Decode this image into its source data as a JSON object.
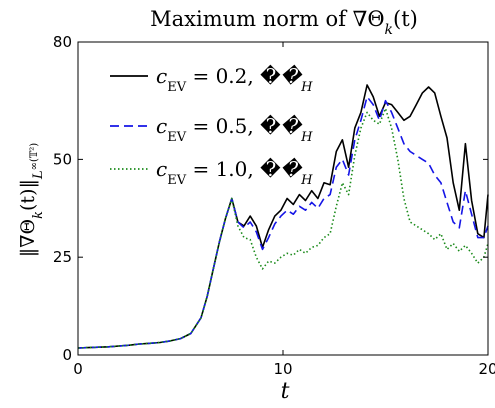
{
  "chart_data": {
    "type": "line",
    "title": "Maximum norm of ∇Θ_k(t)",
    "xlabel": "t",
    "ylabel": "‖∇Θ_k(t)‖_{L^∞(𝕋²)}",
    "xlim": [
      0,
      20
    ],
    "ylim": [
      0,
      80
    ],
    "xticks": [
      0,
      10,
      20
    ],
    "yticks": [
      0,
      25,
      50,
      80
    ],
    "grid": false,
    "legend_position": "top-left",
    "series": [
      {
        "name": "c_EV = 0.2, 𝒯_H",
        "color": "#000000",
        "style": "solid",
        "x": [
          0,
          0.5,
          1,
          1.5,
          2,
          2.5,
          3,
          3.5,
          4,
          4.5,
          5,
          5.5,
          6,
          6.3,
          6.6,
          6.9,
          7.2,
          7.5,
          7.8,
          8.1,
          8.4,
          8.7,
          9,
          9.3,
          9.6,
          9.9,
          10.2,
          10.5,
          10.8,
          11.1,
          11.4,
          11.7,
          12,
          12.3,
          12.6,
          12.9,
          13.2,
          13.5,
          13.8,
          14.1,
          14.4,
          14.7,
          15,
          15.3,
          15.6,
          15.9,
          16.2,
          16.5,
          16.8,
          17.1,
          17.4,
          17.7,
          18,
          18.3,
          18.6,
          18.9,
          19.2,
          19.5,
          19.8,
          20
        ],
        "values": [
          1.8,
          1.9,
          2.0,
          2.1,
          2.3,
          2.5,
          2.8,
          3.0,
          3.2,
          3.6,
          4.2,
          5.5,
          9.5,
          15,
          22,
          29,
          35,
          40,
          34,
          33,
          35.5,
          33,
          27.5,
          32,
          35.5,
          37,
          40,
          38.5,
          41,
          39.5,
          42,
          40,
          44,
          43.5,
          52,
          55,
          48,
          58,
          62,
          69,
          66,
          61,
          64.5,
          64,
          62,
          60,
          61,
          64,
          67,
          68.5,
          67,
          61,
          55.5,
          44,
          37,
          54,
          39.5,
          31,
          30,
          41
        ]
      },
      {
        "name": "c_EV = 0.5, 𝒯_H",
        "color": "#1515e6",
        "style": "dashed",
        "x": [
          0,
          0.5,
          1,
          1.5,
          2,
          2.5,
          3,
          3.5,
          4,
          4.5,
          5,
          5.5,
          6,
          6.3,
          6.6,
          6.9,
          7.2,
          7.5,
          7.8,
          8.1,
          8.4,
          8.7,
          9,
          9.3,
          9.6,
          9.9,
          10.2,
          10.5,
          10.8,
          11.1,
          11.4,
          11.7,
          12,
          12.3,
          12.6,
          12.9,
          13.2,
          13.5,
          13.8,
          14.1,
          14.4,
          14.7,
          15,
          15.3,
          15.6,
          15.9,
          16.2,
          16.5,
          16.8,
          17.1,
          17.4,
          17.7,
          18,
          18.3,
          18.6,
          18.9,
          19.2,
          19.5,
          19.8,
          20
        ],
        "values": [
          1.8,
          1.9,
          2.0,
          2.1,
          2.3,
          2.5,
          2.8,
          3.0,
          3.2,
          3.6,
          4.2,
          5.5,
          9.5,
          15,
          22,
          29,
          35,
          40,
          34,
          32.5,
          34,
          31.5,
          27,
          30,
          33.5,
          35.5,
          37,
          36,
          38,
          37,
          39,
          37.5,
          40,
          41,
          48,
          50,
          46,
          55,
          60,
          66,
          64,
          60,
          65,
          62,
          58,
          54,
          52,
          51,
          50,
          49,
          46,
          44,
          39,
          34,
          32.5,
          42,
          36,
          30,
          30,
          33
        ]
      },
      {
        "name": "c_EV = 1.0, 𝒯_H",
        "color": "#1a8a1a",
        "style": "dotted",
        "x": [
          0,
          0.5,
          1,
          1.5,
          2,
          2.5,
          3,
          3.5,
          4,
          4.5,
          5,
          5.5,
          6,
          6.3,
          6.6,
          6.9,
          7.2,
          7.5,
          7.8,
          8.1,
          8.4,
          8.7,
          9,
          9.3,
          9.6,
          9.9,
          10.2,
          10.5,
          10.8,
          11.1,
          11.4,
          11.7,
          12,
          12.3,
          12.6,
          12.9,
          13.2,
          13.5,
          13.8,
          14.1,
          14.4,
          14.7,
          15,
          15.3,
          15.6,
          15.9,
          16.2,
          16.5,
          16.8,
          17.1,
          17.4,
          17.7,
          18,
          18.3,
          18.6,
          18.9,
          19.2,
          19.5,
          19.8,
          20
        ],
        "values": [
          1.8,
          1.9,
          2.0,
          2.1,
          2.3,
          2.5,
          2.8,
          3.0,
          3.2,
          3.6,
          4.2,
          5.5,
          9.5,
          15,
          22,
          29,
          35,
          40,
          33,
          30,
          29.5,
          25,
          22,
          24,
          23.5,
          25,
          26,
          25.5,
          27,
          26,
          27.5,
          28,
          30,
          31,
          38,
          44,
          41,
          51,
          58,
          62,
          60,
          59,
          63,
          58,
          50,
          40,
          34,
          33,
          32,
          31,
          29.5,
          31,
          27,
          28.5,
          26.5,
          28,
          26,
          23.5,
          25,
          28.5
        ]
      }
    ]
  }
}
